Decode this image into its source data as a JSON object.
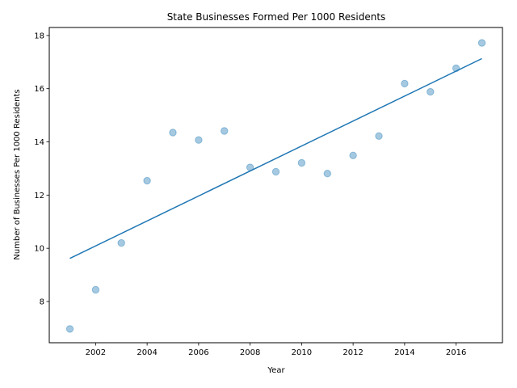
{
  "chart_data": {
    "type": "scatter",
    "title": "State Businesses Formed Per 1000 Residents",
    "xlabel": "Year",
    "ylabel": "Number of Businesses Per 1000 Residents",
    "xlim": [
      2000.2,
      2017.8
    ],
    "ylim": [
      6.45,
      18.3
    ],
    "xticks": [
      2002,
      2004,
      2006,
      2008,
      2010,
      2012,
      2014,
      2016
    ],
    "yticks": [
      8,
      10,
      12,
      14,
      16,
      18
    ],
    "grid": false,
    "series": [
      {
        "kind": "scatter",
        "color": "#1f77b4",
        "alpha": 0.4,
        "points": [
          {
            "x": 2001,
            "y": 6.97
          },
          {
            "x": 2002,
            "y": 8.44
          },
          {
            "x": 2003,
            "y": 10.2
          },
          {
            "x": 2004,
            "y": 12.54
          },
          {
            "x": 2005,
            "y": 14.35
          },
          {
            "x": 2006,
            "y": 14.07
          },
          {
            "x": 2007,
            "y": 14.41
          },
          {
            "x": 2008,
            "y": 13.04
          },
          {
            "x": 2009,
            "y": 12.88
          },
          {
            "x": 2010,
            "y": 13.21
          },
          {
            "x": 2011,
            "y": 12.81
          },
          {
            "x": 2012,
            "y": 13.49
          },
          {
            "x": 2013,
            "y": 14.22
          },
          {
            "x": 2014,
            "y": 16.19
          },
          {
            "x": 2015,
            "y": 15.88
          },
          {
            "x": 2016,
            "y": 16.77
          },
          {
            "x": 2017,
            "y": 17.72
          }
        ]
      },
      {
        "kind": "line",
        "color": "#1f77b4",
        "points": [
          {
            "x": 2001,
            "y": 9.62
          },
          {
            "x": 2017,
            "y": 17.13
          }
        ]
      }
    ]
  }
}
